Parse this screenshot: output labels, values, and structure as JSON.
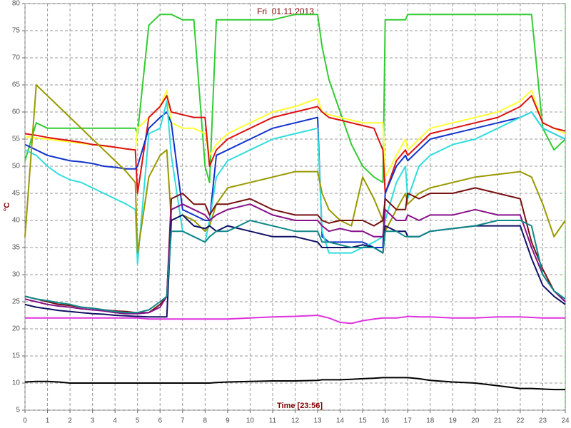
{
  "chart_data": {
    "type": "line",
    "title": "Fri  01.11.2013",
    "x_label": "Time [23:56]",
    "y_label": "°C",
    "xlim": [
      0,
      24
    ],
    "ylim": [
      5,
      80
    ],
    "xticks": [
      0,
      1,
      2,
      3,
      4,
      5,
      6,
      7,
      8,
      9,
      10,
      11,
      12,
      13,
      14,
      15,
      16,
      17,
      18,
      19,
      20,
      21,
      22,
      23,
      24
    ],
    "yticks": [
      5,
      10,
      15,
      20,
      25,
      30,
      35,
      40,
      45,
      50,
      55,
      60,
      65,
      70,
      75,
      80
    ],
    "grid": true,
    "x": [
      0,
      0.5,
      1,
      1.5,
      2,
      2.5,
      3,
      3.5,
      4,
      4.5,
      4.9,
      5,
      5.5,
      6,
      6.3,
      6.5,
      7,
      7.5,
      8,
      8.2,
      8.5,
      9,
      10,
      11,
      12,
      13,
      13.2,
      13.5,
      14,
      14.5,
      15,
      15.5,
      15.9,
      16,
      16.5,
      16.9,
      17,
      17.5,
      18,
      19,
      20,
      21,
      22,
      22.5,
      23,
      23.5,
      24
    ],
    "series": [
      {
        "color": "#33cc33",
        "values": [
          51,
          58,
          57,
          57,
          57,
          57,
          57,
          57,
          57,
          57,
          57,
          56,
          76,
          78,
          78,
          78,
          77,
          77,
          50,
          47,
          77,
          77,
          77,
          77,
          78,
          78,
          72,
          66,
          60,
          54,
          50,
          48,
          47,
          77,
          77,
          77,
          78,
          78,
          78,
          78,
          78,
          78,
          78,
          78,
          57,
          53,
          55
        ]
      },
      {
        "color": "#ffff33",
        "values": [
          55.5,
          55.2,
          55,
          54.7,
          54.5,
          54.2,
          54,
          53.7,
          53.5,
          53.2,
          53,
          57,
          59,
          61,
          64,
          58,
          57,
          57,
          56,
          52,
          54,
          56,
          58,
          60,
          61,
          62.5,
          60,
          59.5,
          59,
          58.5,
          58,
          58,
          58,
          48,
          52,
          55,
          53,
          55,
          57,
          58,
          59,
          60,
          62,
          64,
          58,
          57,
          56
        ]
      },
      {
        "color": "#dd1111",
        "values": [
          56,
          55.7,
          55.3,
          55,
          54.7,
          54.4,
          54,
          53.8,
          53.5,
          53.2,
          53,
          45,
          59,
          61,
          63,
          60,
          59.5,
          59,
          59,
          50,
          53,
          55,
          57,
          59,
          60,
          61,
          60,
          59,
          58.5,
          58,
          57.5,
          57,
          53,
          45,
          51,
          53,
          52,
          54,
          56,
          57,
          58,
          59,
          61,
          63,
          58,
          57,
          56.5
        ]
      },
      {
        "color": "#1133cc",
        "values": [
          54,
          53,
          52,
          51.5,
          51,
          50.8,
          50.5,
          50,
          49.8,
          49.5,
          49.5,
          50,
          57,
          59,
          60,
          58,
          42,
          41,
          40,
          40,
          52,
          53,
          55,
          57,
          58,
          59,
          37,
          36,
          36,
          36,
          36,
          35,
          35,
          45,
          50,
          52,
          51,
          53,
          55,
          56,
          57,
          58,
          59,
          60,
          57,
          56,
          55
        ]
      },
      {
        "color": "#33dddd",
        "values": [
          53,
          52,
          50,
          48.5,
          47.5,
          47,
          46,
          45,
          44,
          43,
          42,
          32,
          56,
          57,
          62,
          52,
          38,
          37,
          36,
          40,
          48,
          51,
          53,
          55,
          56,
          57,
          38,
          34,
          34,
          34,
          35,
          36,
          37,
          40,
          47,
          50,
          44,
          50,
          52,
          54,
          55,
          57,
          59,
          60,
          57,
          56,
          55
        ]
      },
      {
        "color": "#999900",
        "values": [
          37,
          65,
          63,
          61,
          59,
          57,
          55,
          53,
          51,
          49,
          47,
          34,
          48,
          52,
          53,
          40,
          41,
          40,
          38,
          39,
          43,
          46,
          47,
          48,
          49,
          49,
          45,
          42,
          40,
          39,
          48,
          44,
          40,
          38,
          42,
          45,
          43,
          45,
          46,
          47,
          48,
          48.5,
          49,
          48,
          43,
          37,
          40
        ]
      },
      {
        "color": "#771111",
        "values": [
          26,
          25.5,
          25,
          24.5,
          24.3,
          24,
          23.8,
          23.5,
          23.3,
          23.2,
          23,
          23,
          23,
          24.5,
          26,
          44,
          45,
          43,
          43,
          41,
          43,
          43,
          44,
          42,
          41,
          41,
          40,
          39.5,
          40,
          40,
          40,
          39,
          40,
          44,
          42,
          42,
          45,
          44,
          45,
          45,
          46,
          45,
          44,
          36,
          31,
          27,
          25
        ]
      },
      {
        "color": "#881188",
        "values": [
          25.5,
          25,
          24.5,
          24.2,
          24,
          23.7,
          23.5,
          23.3,
          23,
          22.8,
          22.8,
          22.8,
          23,
          24,
          26,
          42,
          43,
          42,
          41,
          40,
          41,
          42,
          43,
          41,
          40,
          40,
          39,
          38,
          38.5,
          38,
          38,
          37,
          37,
          42,
          40,
          40,
          41,
          40,
          41,
          41,
          42,
          41,
          41,
          35,
          30,
          27,
          25
        ]
      },
      {
        "color": "#111166",
        "values": [
          24.5,
          24,
          23.7,
          23.4,
          23.2,
          23,
          22.8,
          22.7,
          22.5,
          22.4,
          22.3,
          22.3,
          22.2,
          22.2,
          22.2,
          40,
          41,
          39,
          38.5,
          39,
          38,
          39,
          38,
          37,
          37,
          36,
          35,
          35,
          35,
          35,
          35.5,
          35,
          34,
          39,
          38,
          38,
          37,
          37,
          38,
          38.5,
          39,
          39,
          39,
          33,
          28,
          26,
          24.5
        ]
      },
      {
        "color": "#118888",
        "values": [
          26,
          25.5,
          25.2,
          24.8,
          24.5,
          24,
          23.8,
          23.5,
          23.2,
          23,
          23,
          23,
          23.5,
          25,
          26,
          38,
          38,
          37,
          36,
          37,
          38,
          38,
          40,
          39,
          38,
          38,
          36,
          36,
          35.5,
          35,
          35,
          35,
          34,
          38,
          38,
          37,
          37,
          37,
          38,
          38.5,
          39,
          40,
          40,
          39,
          30,
          27,
          25.5
        ]
      },
      {
        "color": "#dd33dd",
        "values": [
          22,
          22,
          22,
          22,
          22,
          22,
          22,
          22,
          22,
          22,
          22,
          22,
          21.8,
          21.8,
          21.8,
          21.8,
          21.8,
          21.8,
          21.8,
          21.8,
          21.8,
          21.8,
          22,
          22.2,
          22.3,
          22.5,
          22.3,
          22,
          21.2,
          21,
          21.5,
          21.8,
          22,
          22,
          22,
          22.2,
          22.3,
          22.2,
          22.2,
          22,
          22,
          22.2,
          22.2,
          22.1,
          22,
          22,
          22
        ]
      },
      {
        "color": "#000000",
        "values": [
          10.2,
          10.3,
          10.3,
          10.2,
          10,
          10,
          10,
          10,
          10,
          10,
          10,
          10,
          10,
          10,
          10,
          10,
          10,
          10,
          10,
          10,
          10.1,
          10.2,
          10.3,
          10.4,
          10.4,
          10.5,
          10.6,
          10.6,
          10.6,
          10.7,
          10.8,
          10.9,
          11,
          11,
          11,
          11,
          11,
          10.8,
          10.5,
          10.2,
          10,
          9.5,
          9,
          9,
          8.9,
          8.8,
          8.8
        ]
      }
    ]
  }
}
